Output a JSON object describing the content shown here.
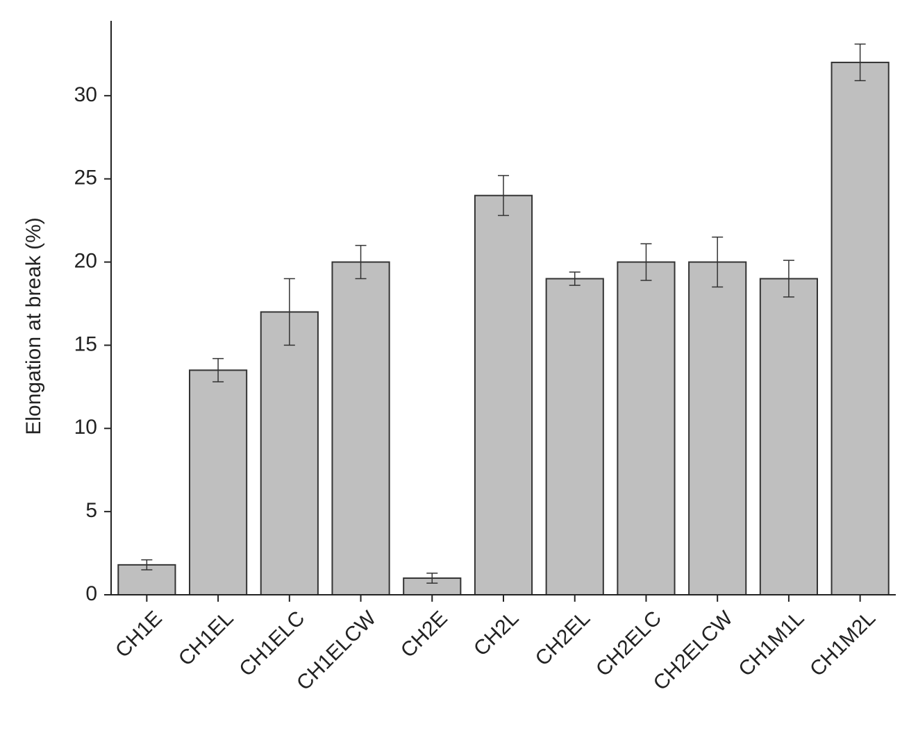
{
  "chart_data": {
    "type": "bar",
    "y_label": "Elongation at break (%)",
    "categories": [
      "CH1E",
      "CH1EL",
      "CH1ELC",
      "CH1ELCW",
      "CH2E",
      "CH2L",
      "CH2EL",
      "CH2ELC",
      "CH2ELCW",
      "CH1M1L",
      "CH1M2L"
    ],
    "values": [
      1.8,
      13.5,
      17,
      20,
      1,
      24,
      19,
      20,
      20,
      19,
      32
    ],
    "errors": [
      0.3,
      0.7,
      2,
      1,
      0.3,
      1.2,
      0.4,
      1.1,
      1.5,
      1.1,
      1.1
    ],
    "color": "#bfbfbf",
    "ylim": [
      0,
      34.5
    ],
    "yticks": [
      0,
      5,
      10,
      15,
      20,
      25,
      30
    ],
    "grid": false
  }
}
